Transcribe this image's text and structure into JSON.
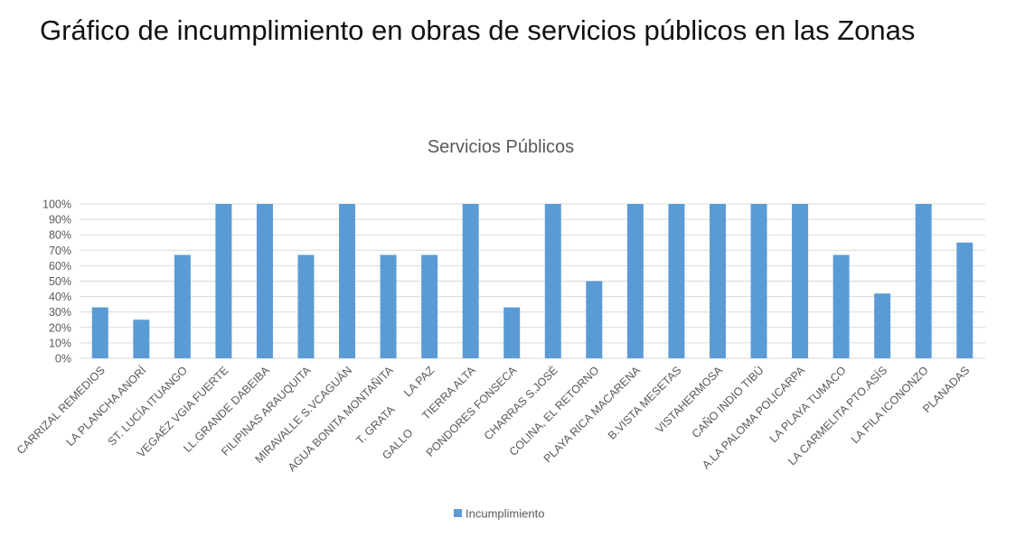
{
  "slide": {
    "title": "Gráfico de incumplimiento en obras de servicios públicos en las Zonas"
  },
  "colors": {
    "bar": "#5b9bd5",
    "grid": "#d9d9d9",
    "text": "#595959"
  },
  "chart_data": {
    "type": "bar",
    "title": "Servicios Públicos",
    "xlabel": "",
    "ylabel": "",
    "ylim": [
      0,
      1
    ],
    "yticks": [
      "0%",
      "10%",
      "20%",
      "30%",
      "40%",
      "50%",
      "60%",
      "70%",
      "80%",
      "90%",
      "100%"
    ],
    "grid": true,
    "legend_position": "bottom",
    "categories": [
      "CARRIZAL REMEDIOS",
      "LA PLANCHA ANORÍ",
      "ST. LUCÍA ITUANGO",
      "VEGAÉZ VGIA FUERTE",
      "LL.GRANDE DABEIBA",
      "FILIPINAS ARAUQUITA",
      "MIRAVALLE S.VCAGUÁN",
      "AGUA BONITA MONTAÑITA",
      "T. GRATA      LA PAZ",
      "GALLO      TIERRA ALTA",
      "PONDORES FONSECA",
      "CHARRAS S.JOSÉ",
      "COLINA, EL RETORNO",
      "PLAYA RICA MACARENA",
      "B.VISTA MESETAS",
      "VISTAHERMOSA",
      "CAÑO INDIO TIBÚ",
      "A.LA PALOMA POLICARPA",
      "LA PLAYA TUMACO",
      "LA CARMELITA PTO.ASÍS",
      "LA FILA ICONONZO",
      "PLANADAS"
    ],
    "series": [
      {
        "name": "Incumplimiento",
        "values": [
          0.33,
          0.25,
          0.67,
          1.0,
          1.0,
          0.67,
          1.0,
          0.67,
          0.67,
          1.0,
          0.33,
          1.0,
          0.5,
          1.0,
          1.0,
          1.0,
          1.0,
          1.0,
          0.67,
          0.42,
          1.0,
          0.75
        ]
      }
    ]
  }
}
